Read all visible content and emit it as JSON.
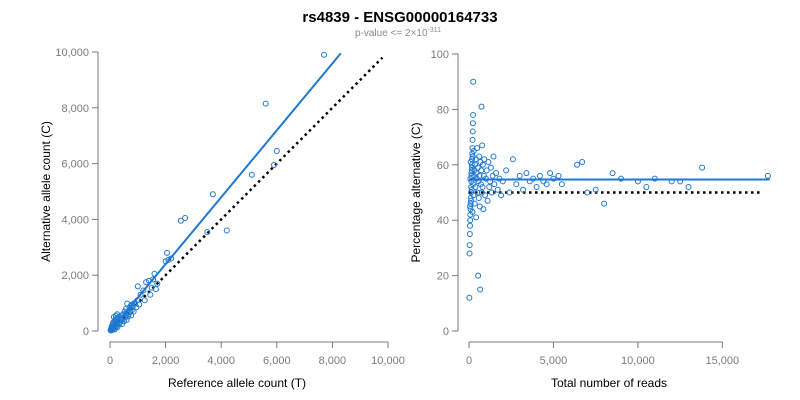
{
  "header": {
    "title": "rs4839 - ENSG00000164733",
    "subtitle_prefix": "p-value <= 2×10",
    "subtitle_exponent": "-311"
  },
  "colors": {
    "series": "#1f78d1",
    "reference": "#000000",
    "axis": "#7a7a7a",
    "background": "#ffffff"
  },
  "chart_data": [
    {
      "type": "scatter",
      "xlabel": "Reference allele count (T)",
      "ylabel": "Alternative allele count (C)",
      "xlim": [
        0,
        10000
      ],
      "ylim": [
        0,
        10000
      ],
      "x_ticks": [
        0,
        2000,
        4000,
        6000,
        8000,
        10000
      ],
      "x_tick_labels": [
        "0",
        "2,000",
        "4,000",
        "6,000",
        "8,000",
        "10,000"
      ],
      "y_ticks": [
        0,
        2000,
        4000,
        6000,
        8000,
        10000
      ],
      "y_tick_labels": [
        "0",
        "2,000",
        "4,000",
        "6,000",
        "8,000",
        "10,000"
      ],
      "grid": false,
      "points": [
        [
          20,
          30
        ],
        [
          30,
          60
        ],
        [
          40,
          20
        ],
        [
          50,
          110
        ],
        [
          60,
          150
        ],
        [
          70,
          80
        ],
        [
          80,
          200
        ],
        [
          90,
          40
        ],
        [
          100,
          130
        ],
        [
          110,
          300
        ],
        [
          120,
          90
        ],
        [
          130,
          250
        ],
        [
          140,
          500
        ],
        [
          150,
          160
        ],
        [
          160,
          350
        ],
        [
          170,
          60
        ],
        [
          180,
          220
        ],
        [
          190,
          400
        ],
        [
          200,
          120
        ],
        [
          210,
          550
        ],
        [
          220,
          310
        ],
        [
          230,
          180
        ],
        [
          240,
          450
        ],
        [
          250,
          260
        ],
        [
          260,
          600
        ],
        [
          270,
          140
        ],
        [
          280,
          380
        ],
        [
          300,
          480
        ],
        [
          320,
          230
        ],
        [
          340,
          520
        ],
        [
          360,
          300
        ],
        [
          380,
          420
        ],
        [
          400,
          380
        ],
        [
          420,
          560
        ],
        [
          440,
          250
        ],
        [
          460,
          470
        ],
        [
          480,
          600
        ],
        [
          500,
          350
        ],
        [
          520,
          700
        ],
        [
          540,
          480
        ],
        [
          560,
          620
        ],
        [
          580,
          800
        ],
        [
          600,
          400
        ],
        [
          620,
          980
        ],
        [
          640,
          520
        ],
        [
          660,
          700
        ],
        [
          680,
          600
        ],
        [
          700,
          820
        ],
        [
          720,
          680
        ],
        [
          740,
          900
        ],
        [
          760,
          560
        ],
        [
          780,
          740
        ],
        [
          800,
          950
        ],
        [
          820,
          860
        ],
        [
          850,
          700
        ],
        [
          880,
          1000
        ],
        [
          900,
          1000
        ],
        [
          950,
          850
        ],
        [
          980,
          1100
        ],
        [
          1000,
          1600
        ],
        [
          1050,
          950
        ],
        [
          1100,
          1300
        ],
        [
          1200,
          1450
        ],
        [
          1250,
          1100
        ],
        [
          1300,
          1750
        ],
        [
          1400,
          1800
        ],
        [
          1450,
          1300
        ],
        [
          1500,
          1550
        ],
        [
          1550,
          1850
        ],
        [
          1600,
          2050
        ],
        [
          1650,
          1500
        ],
        [
          1700,
          1700
        ],
        [
          2000,
          2500
        ],
        [
          2050,
          2800
        ],
        [
          2100,
          2550
        ],
        [
          2200,
          2600
        ],
        [
          2550,
          3950
        ],
        [
          2700,
          4050
        ],
        [
          3500,
          3550
        ],
        [
          3700,
          4900
        ],
        [
          4200,
          3600
        ],
        [
          5100,
          5600
        ],
        [
          5600,
          8150
        ],
        [
          5900,
          5950
        ],
        [
          6000,
          6450
        ],
        [
          7700,
          9900
        ]
      ],
      "series": [
        {
          "values": "fit",
          "line": [
            [
              0,
              0
            ],
            [
              8300,
              9950
            ]
          ],
          "style": "solid"
        },
        {
          "values": "reference",
          "line": [
            [
              0,
              0
            ],
            [
              9800,
              9800
            ]
          ],
          "style": "dotted"
        }
      ]
    },
    {
      "type": "scatter",
      "xlabel": "Total number of reads",
      "ylabel": "Percentage alternative (C)",
      "xlim": [
        0,
        18000
      ],
      "ylim": [
        0,
        100
      ],
      "x_ticks": [
        0,
        5000,
        10000,
        15000
      ],
      "x_tick_labels": [
        "0",
        "5,000",
        "10,000",
        "15,000"
      ],
      "y_ticks": [
        0,
        20,
        40,
        60,
        80,
        100
      ],
      "y_tick_labels": [
        "0",
        "20",
        "40",
        "60",
        "80",
        "100"
      ],
      "grid": false,
      "points": [
        [
          20,
          12
        ],
        [
          30,
          28
        ],
        [
          40,
          31
        ],
        [
          50,
          35
        ],
        [
          60,
          38
        ],
        [
          70,
          40
        ],
        [
          80,
          42
        ],
        [
          90,
          44
        ],
        [
          100,
          46
        ],
        [
          110,
          48
        ],
        [
          120,
          50
        ],
        [
          130,
          52
        ],
        [
          140,
          54
        ],
        [
          150,
          56
        ],
        [
          160,
          58
        ],
        [
          170,
          60
        ],
        [
          180,
          62
        ],
        [
          190,
          64
        ],
        [
          200,
          66
        ],
        [
          210,
          69
        ],
        [
          220,
          72
        ],
        [
          230,
          75
        ],
        [
          240,
          78
        ],
        [
          250,
          90
        ],
        [
          60,
          45
        ],
        [
          80,
          55
        ],
        [
          100,
          61
        ],
        [
          120,
          47
        ],
        [
          140,
          57
        ],
        [
          160,
          51
        ],
        [
          180,
          59
        ],
        [
          200,
          43
        ],
        [
          220,
          63
        ],
        [
          240,
          53
        ],
        [
          260,
          49
        ],
        [
          280,
          65
        ],
        [
          300,
          56
        ],
        [
          320,
          58
        ],
        [
          340,
          46
        ],
        [
          360,
          60
        ],
        [
          380,
          52
        ],
        [
          400,
          62
        ],
        [
          420,
          41
        ],
        [
          440,
          57
        ],
        [
          460,
          55
        ],
        [
          480,
          66
        ],
        [
          500,
          50
        ],
        [
          520,
          59
        ],
        [
          540,
          20
        ],
        [
          560,
          54
        ],
        [
          580,
          48
        ],
        [
          600,
          63
        ],
        [
          620,
          56
        ],
        [
          640,
          45
        ],
        [
          660,
          15
        ],
        [
          680,
          61
        ],
        [
          700,
          53
        ],
        [
          720,
          58
        ],
        [
          740,
          81
        ],
        [
          760,
          50
        ],
        [
          780,
          67
        ],
        [
          800,
          52
        ],
        [
          820,
          60
        ],
        [
          850,
          44
        ],
        [
          880,
          56
        ],
        [
          900,
          62
        ],
        [
          950,
          49
        ],
        [
          1000,
          55
        ],
        [
          1050,
          58
        ],
        [
          1100,
          47
        ],
        [
          1150,
          61
        ],
        [
          1200,
          52
        ],
        [
          1250,
          54
        ],
        [
          1300,
          59
        ],
        [
          1350,
          50
        ],
        [
          1400,
          56
        ],
        [
          1450,
          63
        ],
        [
          1500,
          53
        ],
        [
          1600,
          57
        ],
        [
          1700,
          51
        ],
        [
          1800,
          55
        ],
        [
          1900,
          49
        ],
        [
          2000,
          54
        ],
        [
          2200,
          58
        ],
        [
          2400,
          50
        ],
        [
          2600,
          62
        ],
        [
          2800,
          53
        ],
        [
          3000,
          56
        ],
        [
          3200,
          51
        ],
        [
          3400,
          57
        ],
        [
          3600,
          54
        ],
        [
          3800,
          55
        ],
        [
          4000,
          52
        ],
        [
          4200,
          56
        ],
        [
          4400,
          54
        ],
        [
          4600,
          53
        ],
        [
          4800,
          57
        ],
        [
          5000,
          55
        ],
        [
          5300,
          56
        ],
        [
          5500,
          53
        ],
        [
          6400,
          60
        ],
        [
          6700,
          61
        ],
        [
          7000,
          50
        ],
        [
          7500,
          51
        ],
        [
          8000,
          46
        ],
        [
          8500,
          57
        ],
        [
          9000,
          55
        ],
        [
          10000,
          54
        ],
        [
          10500,
          52
        ],
        [
          11000,
          55
        ],
        [
          12000,
          54
        ],
        [
          12500,
          54
        ],
        [
          13000,
          52
        ],
        [
          13800,
          59
        ],
        [
          17700,
          56
        ]
      ],
      "series": [
        {
          "values": "fit",
          "line": [
            [
              0,
              54.7
            ],
            [
              17800,
              54.7
            ]
          ],
          "style": "solid"
        },
        {
          "values": "reference",
          "line": [
            [
              0,
              50
            ],
            [
              17400,
              50
            ]
          ],
          "style": "dotted"
        }
      ]
    }
  ]
}
